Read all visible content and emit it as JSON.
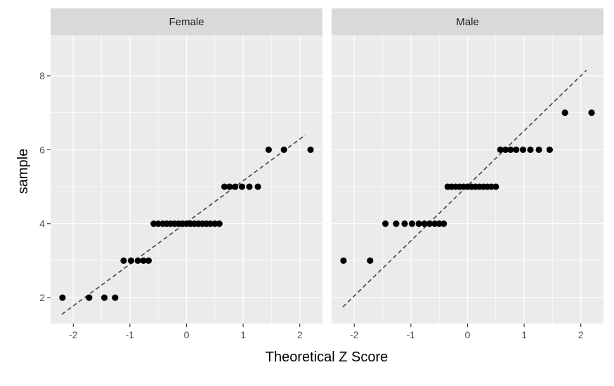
{
  "chart_data": {
    "type": "scatter",
    "subtype": "qq-plot-faceted",
    "xlabel": "Theoretical Z Score",
    "ylabel": "sample",
    "xlim": [
      -2.4,
      2.4
    ],
    "ylim": [
      1.3,
      9.1
    ],
    "x_ticks": [
      -2,
      -1,
      0,
      1,
      2
    ],
    "x_tick_labels": [
      "-2",
      "-1",
      "0",
      "1",
      "2"
    ],
    "y_ticks": [
      2,
      4,
      6,
      8
    ],
    "y_tick_labels": [
      "2",
      "4",
      "6",
      "8"
    ],
    "grid": true,
    "panels": [
      {
        "facet": "Female",
        "points": [
          [
            -2.19,
            2
          ],
          [
            -1.72,
            2
          ],
          [
            -1.45,
            2
          ],
          [
            -1.26,
            2
          ],
          [
            -1.11,
            3
          ],
          [
            -0.98,
            3
          ],
          [
            -0.86,
            3
          ],
          [
            -0.76,
            3
          ],
          [
            -0.67,
            3
          ],
          [
            -0.58,
            4
          ],
          [
            -0.5,
            4
          ],
          [
            -0.42,
            4
          ],
          [
            -0.35,
            4
          ],
          [
            -0.28,
            4
          ],
          [
            -0.21,
            4
          ],
          [
            -0.14,
            4
          ],
          [
            -0.07,
            4
          ],
          [
            0.0,
            4
          ],
          [
            0.07,
            4
          ],
          [
            0.14,
            4
          ],
          [
            0.21,
            4
          ],
          [
            0.28,
            4
          ],
          [
            0.35,
            4
          ],
          [
            0.42,
            4
          ],
          [
            0.5,
            4
          ],
          [
            0.58,
            4
          ],
          [
            0.67,
            5
          ],
          [
            0.76,
            5
          ],
          [
            0.86,
            5
          ],
          [
            0.98,
            5
          ],
          [
            1.11,
            5
          ],
          [
            1.26,
            5
          ],
          [
            1.45,
            6
          ],
          [
            1.72,
            6
          ],
          [
            2.19,
            6
          ]
        ],
        "reference_line": {
          "x": [
            -2.2,
            2.1
          ],
          "y": [
            1.55,
            6.4
          ]
        }
      },
      {
        "facet": "Male",
        "points": [
          [
            -2.19,
            3
          ],
          [
            -1.72,
            3
          ],
          [
            -1.45,
            4
          ],
          [
            -1.26,
            4
          ],
          [
            -1.11,
            4
          ],
          [
            -0.98,
            4
          ],
          [
            -0.86,
            4
          ],
          [
            -0.76,
            4
          ],
          [
            -0.67,
            4
          ],
          [
            -0.58,
            4
          ],
          [
            -0.5,
            4
          ],
          [
            -0.42,
            4
          ],
          [
            -0.35,
            5
          ],
          [
            -0.28,
            5
          ],
          [
            -0.21,
            5
          ],
          [
            -0.14,
            5
          ],
          [
            -0.07,
            5
          ],
          [
            0.0,
            5
          ],
          [
            0.07,
            5
          ],
          [
            0.14,
            5
          ],
          [
            0.21,
            5
          ],
          [
            0.28,
            5
          ],
          [
            0.35,
            5
          ],
          [
            0.42,
            5
          ],
          [
            0.5,
            5
          ],
          [
            0.58,
            6
          ],
          [
            0.67,
            6
          ],
          [
            0.76,
            6
          ],
          [
            0.86,
            6
          ],
          [
            0.98,
            6
          ],
          [
            1.11,
            6
          ],
          [
            1.26,
            6
          ],
          [
            1.45,
            6
          ],
          [
            1.72,
            7
          ],
          [
            2.19,
            7
          ]
        ],
        "reference_line": {
          "x": [
            -2.2,
            2.1
          ],
          "y": [
            1.75,
            8.15
          ]
        }
      }
    ]
  }
}
